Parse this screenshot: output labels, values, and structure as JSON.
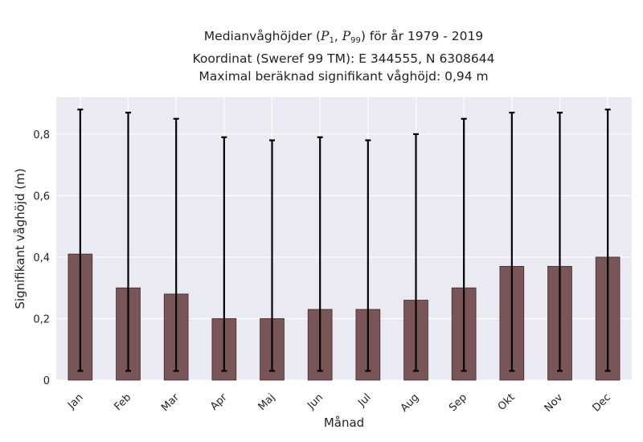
{
  "title_lines": {
    "line1_prefix": "Medianvåghöjder (",
    "p1_symbol": "P",
    "p1_sub": "1",
    "comma": ", ",
    "p99_symbol": "P",
    "p99_sub": "99",
    "line1_suffix": ") för år 1979 - 2019",
    "line2": "Koordinat (Sweref 99 TM): E 344555, N 6308644",
    "line3": "Maximal beräknad signifikant våghöjd: 0,94 m"
  },
  "colors": {
    "plot_background": "#eaeaf2",
    "grid": "#ffffff",
    "bar_fill": "#7a5558",
    "bar_edge": "#3d2a2c",
    "error_bar": "#000000",
    "text": "#222222"
  },
  "chart_data": {
    "type": "bar",
    "title": "",
    "xlabel": "Månad",
    "ylabel": "Signifikant våghöjd (m)",
    "categories": [
      "Jan",
      "Feb",
      "Mar",
      "Apr",
      "Maj",
      "Jun",
      "Jul",
      "Aug",
      "Sep",
      "Okt",
      "Nov",
      "Dec"
    ],
    "series": [
      {
        "values": [
          0.41,
          0.3,
          0.28,
          0.2,
          0.2,
          0.23,
          0.23,
          0.26,
          0.3,
          0.37,
          0.37,
          0.4
        ],
        "error_low": [
          0.03,
          0.03,
          0.03,
          0.03,
          0.03,
          0.03,
          0.03,
          0.03,
          0.03,
          0.03,
          0.03,
          0.03
        ],
        "error_high": [
          0.88,
          0.87,
          0.85,
          0.79,
          0.78,
          0.79,
          0.78,
          0.8,
          0.85,
          0.87,
          0.87,
          0.88
        ]
      }
    ],
    "ylim": [
      0,
      0.92
    ],
    "yticks": [
      0,
      0.2,
      0.4,
      0.6,
      0.8
    ],
    "ytick_labels": [
      "0",
      "0,2",
      "0,4",
      "0,6",
      "0,8"
    ],
    "grid": true,
    "legend": "none"
  }
}
